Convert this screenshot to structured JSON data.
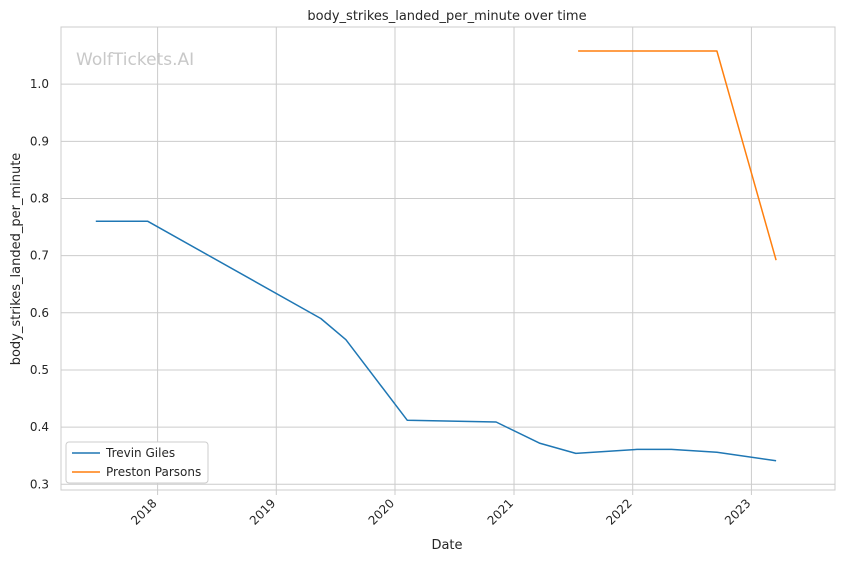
{
  "watermark": "WolfTickets.AI",
  "chart_data": {
    "type": "line",
    "title": "body_strikes_landed_per_minute over time",
    "xlabel": "Date",
    "ylabel": "body_strikes_landed_per_minute",
    "x_ticks": [
      "2018",
      "2019",
      "2020",
      "2021",
      "2022",
      "2023"
    ],
    "y_ticks": [
      "0.3",
      "0.4",
      "0.5",
      "0.6",
      "0.7",
      "0.8",
      "0.9",
      "1.0"
    ],
    "xlim": [
      "2017-03-10",
      "2023-09-15"
    ],
    "ylim": [
      0.29,
      1.1
    ],
    "grid": true,
    "legend_position": "lower-left",
    "series": [
      {
        "name": "Trevin Giles",
        "color": "#1f77b4",
        "points": [
          [
            "2017-06-25",
            0.76
          ],
          [
            "2017-12-02",
            0.76
          ],
          [
            "2019-05-18",
            0.59
          ],
          [
            "2019-08-03",
            0.553
          ],
          [
            "2020-02-08",
            0.412
          ],
          [
            "2020-11-07",
            0.409
          ],
          [
            "2021-03-20",
            0.372
          ],
          [
            "2021-07-10",
            0.354
          ],
          [
            "2022-01-15",
            0.361
          ],
          [
            "2022-04-30",
            0.361
          ],
          [
            "2022-09-17",
            0.356
          ],
          [
            "2023-03-18",
            0.341
          ]
        ]
      },
      {
        "name": "Preston Parsons",
        "color": "#ff7f0e",
        "points": [
          [
            "2021-07-17",
            1.058
          ],
          [
            "2022-01-15",
            1.058
          ],
          [
            "2022-09-17",
            1.058
          ],
          [
            "2023-03-18",
            0.692
          ]
        ]
      }
    ]
  }
}
